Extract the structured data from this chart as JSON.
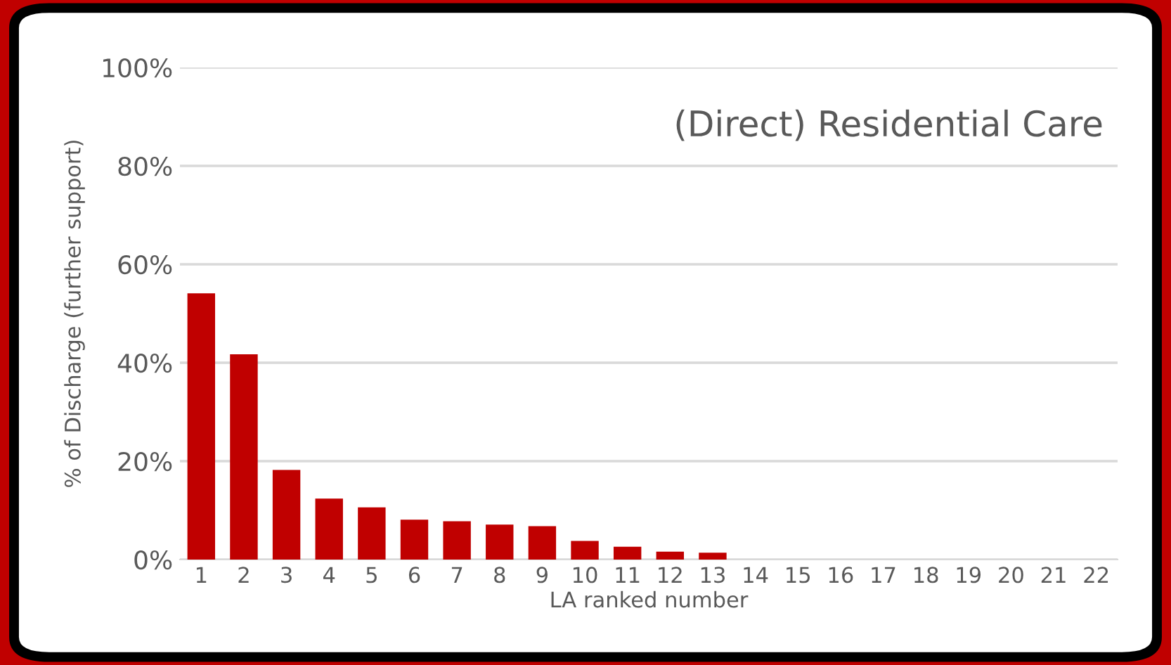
{
  "chart_data": {
    "type": "bar",
    "title": "(Direct) Residential Care",
    "xlabel": "LA ranked number",
    "ylabel": "% of Discharge (further support)",
    "categories": [
      "1",
      "2",
      "3",
      "4",
      "5",
      "6",
      "7",
      "8",
      "9",
      "10",
      "11",
      "12",
      "13",
      "14",
      "15",
      "16",
      "17",
      "18",
      "19",
      "20",
      "21",
      "22"
    ],
    "values": [
      54.1,
      41.7,
      18.2,
      12.4,
      10.6,
      8.1,
      7.8,
      7.1,
      6.8,
      3.8,
      2.6,
      1.6,
      1.4,
      0,
      0,
      0,
      0,
      0,
      0,
      0,
      0,
      0
    ],
    "color": "#c00000",
    "ylim": [
      0,
      100
    ],
    "yticks": [
      {
        "value": 0,
        "label": "0%"
      },
      {
        "value": 20,
        "label": "20%"
      },
      {
        "value": 40,
        "label": "40%"
      },
      {
        "value": 60,
        "label": "60%"
      },
      {
        "value": 80,
        "label": "80%"
      },
      {
        "value": 100,
        "label": "100%"
      }
    ],
    "grid": "y",
    "legend": false
  }
}
